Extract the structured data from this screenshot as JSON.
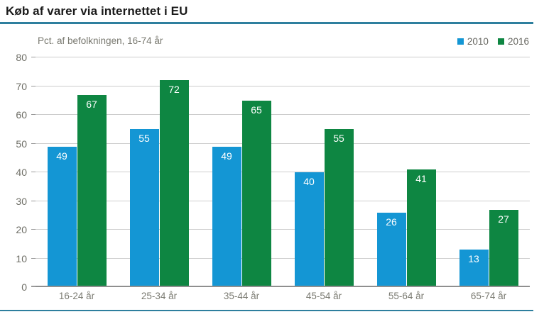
{
  "colors": {
    "accent_rule": "#2e7f9e",
    "series_2010": "#1496d4",
    "series_2016": "#0e8642",
    "gridline": "#cdcdcd",
    "axis_line": "#8f8f8f",
    "muted_text": "#78786f",
    "bar_value_text": "#ffffff",
    "title_text": "#1a1a1a"
  },
  "chart_data": {
    "type": "bar",
    "title": "Køb af varer via internettet i EU",
    "subtitle": "Pct. af befolkningen, 16-74 år",
    "categories": [
      "16-24 år",
      "25-34 år",
      "35-44 år",
      "45-54 år",
      "55-64 år",
      "65-74 år"
    ],
    "series": [
      {
        "name": "2010",
        "color": "#1496d4",
        "values": [
          49,
          55,
          49,
          40,
          26,
          13
        ]
      },
      {
        "name": "2016",
        "color": "#0e8642",
        "values": [
          67,
          72,
          65,
          55,
          41,
          27
        ]
      }
    ],
    "xlabel": "",
    "ylabel": "",
    "ylim": [
      0,
      80
    ],
    "yticks": [
      0,
      10,
      20,
      30,
      40,
      50,
      60,
      70,
      80
    ],
    "grid": true,
    "legend_position": "top-right",
    "value_labels": true
  }
}
